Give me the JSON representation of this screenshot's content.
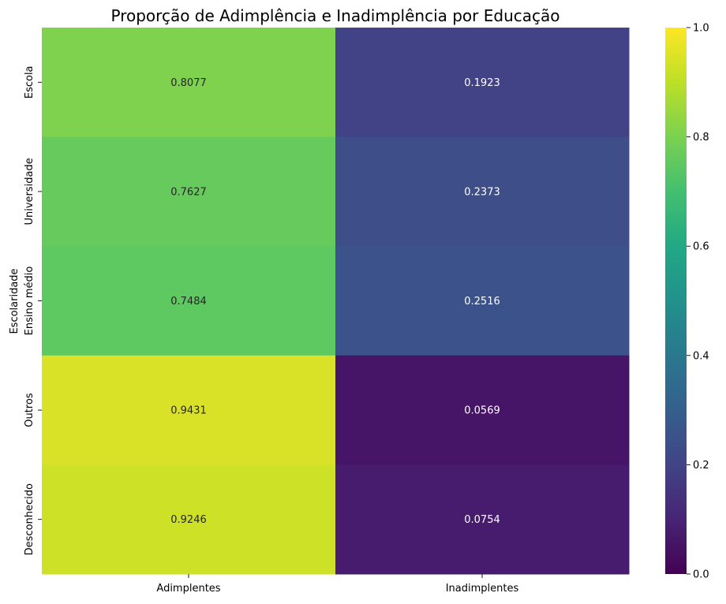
{
  "chart_data": {
    "type": "heatmap",
    "title": "Proporção de Adimplência e Inadimplência por Educação",
    "ylabel": "Escolaridade",
    "xlabel": "",
    "columns": [
      "Adimplentes",
      "Inadimplentes"
    ],
    "rows": [
      "Escola",
      "Universidade",
      "Ensino médio",
      "Outros",
      "Desconhecido"
    ],
    "values": [
      [
        0.8077,
        0.1923
      ],
      [
        0.7627,
        0.2373
      ],
      [
        0.7484,
        0.2516
      ],
      [
        0.9431,
        0.0569
      ],
      [
        0.9246,
        0.0754
      ]
    ],
    "value_labels": [
      [
        "0.8077",
        "0.1923"
      ],
      [
        "0.7627",
        "0.2373"
      ],
      [
        "0.7484",
        "0.2516"
      ],
      [
        "0.9431",
        "0.0569"
      ],
      [
        "0.9246",
        "0.0754"
      ]
    ],
    "colormap": "viridis",
    "vmin": 0.0,
    "vmax": 1.0,
    "colorbar_ticks": [
      0.0,
      0.2,
      0.4,
      0.6,
      0.8,
      1.0
    ],
    "colorbar_tick_labels": [
      "0.0",
      "0.2",
      "0.4",
      "0.6",
      "0.8",
      "1.0"
    ],
    "annotation_colors": {
      "on_light": "#262626",
      "on_dark": "#ffffff"
    }
  }
}
